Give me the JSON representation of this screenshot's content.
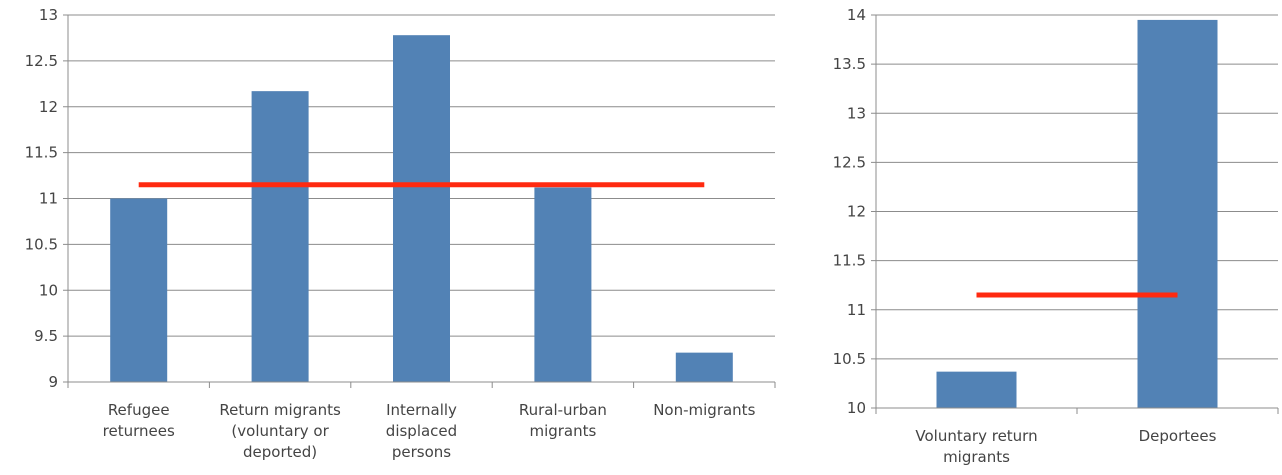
{
  "chart_data": [
    {
      "type": "bar",
      "categories": [
        "Refugee\nreturnees",
        "Return migrants\n(voluntary or\ndeported)",
        "Internally\ndisplaced\npersons",
        "Rural-urban\nmigrants",
        "Non-migrants"
      ],
      "values": [
        11.0,
        12.17,
        12.78,
        11.12,
        9.32
      ],
      "color": "#5282b5",
      "ylim": [
        9,
        13
      ],
      "yticks": [
        9,
        9.5,
        10,
        10.5,
        11,
        11.5,
        12,
        12.5,
        13
      ],
      "grid": true,
      "reference_line": 11.15,
      "reference_color": "#ff2a10"
    },
    {
      "type": "bar",
      "categories": [
        "Voluntary return\nmigrants",
        "Deportees"
      ],
      "values": [
        10.37,
        13.95
      ],
      "color": "#5282b5",
      "ylim": [
        10,
        14
      ],
      "yticks": [
        10,
        10.5,
        11,
        11.5,
        12,
        12.5,
        13,
        13.5,
        14
      ],
      "grid": true,
      "reference_line": 11.15,
      "reference_color": "#ff2a10"
    }
  ]
}
